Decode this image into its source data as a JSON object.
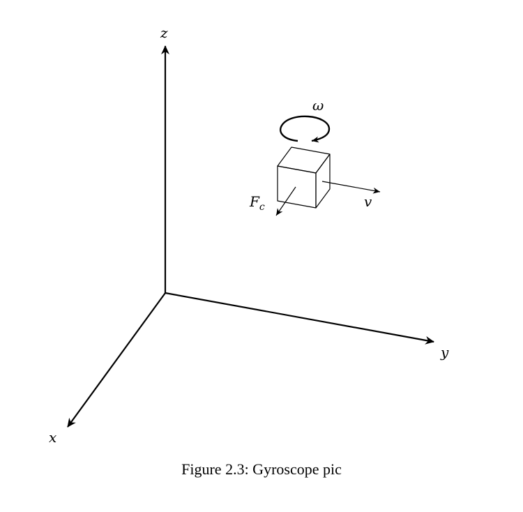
{
  "axes": {
    "z_label": "z",
    "y_label": "y",
    "x_label": "x"
  },
  "labels": {
    "omega": "ω",
    "force_main": "F",
    "force_sub": "c",
    "velocity": "v"
  },
  "caption": "Figure 2.3: Gyroscope pic"
}
